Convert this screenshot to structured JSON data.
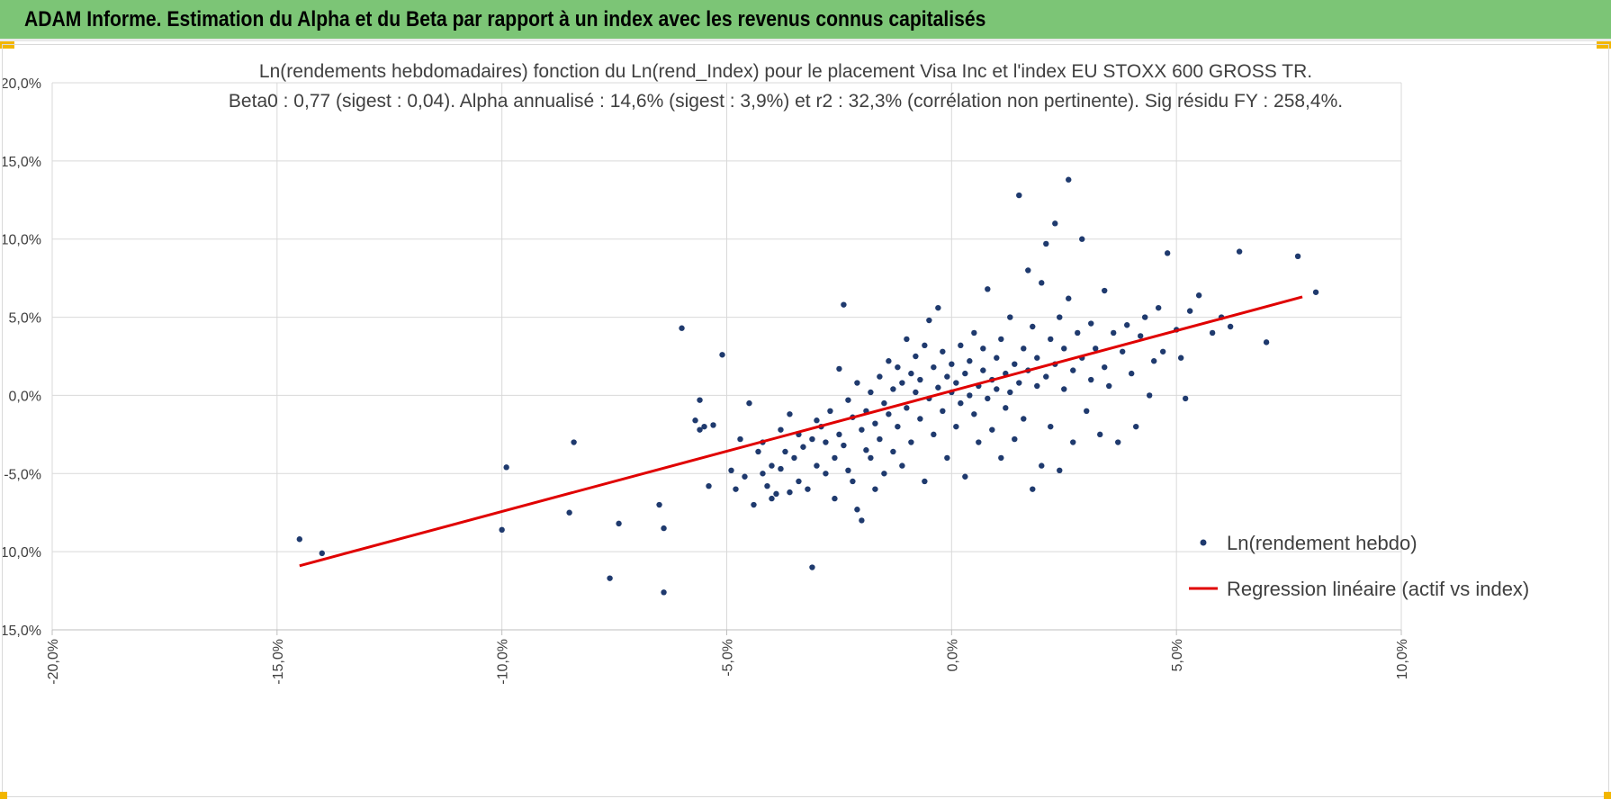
{
  "header": {
    "title": "ADAM Informe. Estimation du Alpha et du Beta par rapport à un index avec les revenus connus capitalisés"
  },
  "colors": {
    "header_bg": "#7cc576",
    "points": "#1f3a6e",
    "regression": "#e00000"
  },
  "chart_data": {
    "type": "scatter",
    "title": "Ln(rendements hebdomadaires) fonction du Ln(rend_Index) pour le placement Visa Inc et l'index EU STOXX 600 GROSS TR.",
    "subtitle": "Beta0 : 0,77 (sigest : 0,04). Alpha annualisé : 14,6% (sigest : 3,9%) et r2 : 32,3% (corrélation non pertinente). Sig résidu FY : 258,4%.",
    "xlabel": "",
    "ylabel": "",
    "xlim": [
      -0.2,
      0.1
    ],
    "ylim": [
      -0.15,
      0.2
    ],
    "x_ticks": [
      "-20,0%",
      "-15,0%",
      "-10,0%",
      "-5,0%",
      "0,0%",
      "5,0%",
      "10,0%"
    ],
    "y_ticks": [
      "20,0%",
      "15,0%",
      "10,0%",
      "5,0%",
      "0,0%",
      "-5,0%",
      "-10,0%",
      "-15,0%"
    ],
    "grid": true,
    "legend_position": "bottom-right",
    "series": [
      {
        "name": "Ln(rendement hebdo)",
        "kind": "scatter",
        "points": [
          [
            -0.145,
            -0.092
          ],
          [
            -0.14,
            -0.101
          ],
          [
            -0.1,
            -0.086
          ],
          [
            -0.099,
            -0.046
          ],
          [
            -0.084,
            -0.03
          ],
          [
            -0.085,
            -0.075
          ],
          [
            -0.076,
            -0.117
          ],
          [
            -0.074,
            -0.082
          ],
          [
            -0.065,
            -0.07
          ],
          [
            -0.064,
            -0.085
          ],
          [
            -0.064,
            -0.126
          ],
          [
            -0.06,
            0.043
          ],
          [
            -0.057,
            -0.016
          ],
          [
            -0.056,
            -0.022
          ],
          [
            -0.056,
            -0.003
          ],
          [
            -0.055,
            -0.02
          ],
          [
            -0.054,
            -0.058
          ],
          [
            -0.053,
            -0.019
          ],
          [
            -0.051,
            0.026
          ],
          [
            -0.049,
            -0.048
          ],
          [
            -0.048,
            -0.06
          ],
          [
            -0.047,
            -0.028
          ],
          [
            -0.046,
            -0.052
          ],
          [
            -0.045,
            -0.005
          ],
          [
            -0.044,
            -0.07
          ],
          [
            -0.043,
            -0.036
          ],
          [
            -0.042,
            -0.05
          ],
          [
            -0.042,
            -0.03
          ],
          [
            -0.041,
            -0.058
          ],
          [
            -0.04,
            -0.066
          ],
          [
            -0.04,
            -0.045
          ],
          [
            -0.039,
            -0.063
          ],
          [
            -0.038,
            -0.022
          ],
          [
            -0.038,
            -0.047
          ],
          [
            -0.037,
            -0.036
          ],
          [
            -0.036,
            -0.012
          ],
          [
            -0.036,
            -0.062
          ],
          [
            -0.035,
            -0.04
          ],
          [
            -0.034,
            -0.055
          ],
          [
            -0.034,
            -0.025
          ],
          [
            -0.033,
            -0.033
          ],
          [
            -0.032,
            -0.06
          ],
          [
            -0.031,
            -0.028
          ],
          [
            -0.031,
            -0.11
          ],
          [
            -0.03,
            -0.016
          ],
          [
            -0.03,
            -0.045
          ],
          [
            -0.029,
            -0.02
          ],
          [
            -0.028,
            -0.03
          ],
          [
            -0.028,
            -0.05
          ],
          [
            -0.027,
            -0.01
          ],
          [
            -0.026,
            -0.066
          ],
          [
            -0.026,
            -0.04
          ],
          [
            -0.025,
            0.017
          ],
          [
            -0.025,
            -0.025
          ],
          [
            -0.024,
            0.058
          ],
          [
            -0.024,
            -0.032
          ],
          [
            -0.023,
            -0.048
          ],
          [
            -0.023,
            -0.003
          ],
          [
            -0.022,
            -0.014
          ],
          [
            -0.022,
            -0.055
          ],
          [
            -0.021,
            0.008
          ],
          [
            -0.021,
            -0.073
          ],
          [
            -0.02,
            -0.022
          ],
          [
            -0.02,
            -0.08
          ],
          [
            -0.019,
            -0.035
          ],
          [
            -0.019,
            -0.01
          ],
          [
            -0.018,
            0.002
          ],
          [
            -0.018,
            -0.04
          ],
          [
            -0.017,
            -0.06
          ],
          [
            -0.017,
            -0.018
          ],
          [
            -0.016,
            0.012
          ],
          [
            -0.016,
            -0.028
          ],
          [
            -0.015,
            -0.005
          ],
          [
            -0.015,
            -0.05
          ],
          [
            -0.014,
            0.022
          ],
          [
            -0.014,
            -0.012
          ],
          [
            -0.013,
            0.004
          ],
          [
            -0.013,
            -0.036
          ],
          [
            -0.012,
            0.018
          ],
          [
            -0.012,
            -0.02
          ],
          [
            -0.011,
            -0.045
          ],
          [
            -0.011,
            0.008
          ],
          [
            -0.01,
            0.036
          ],
          [
            -0.01,
            -0.008
          ],
          [
            -0.009,
            0.014
          ],
          [
            -0.009,
            -0.03
          ],
          [
            -0.008,
            0.002
          ],
          [
            -0.008,
            0.025
          ],
          [
            -0.007,
            -0.015
          ],
          [
            -0.007,
            0.01
          ],
          [
            -0.006,
            -0.055
          ],
          [
            -0.006,
            0.032
          ],
          [
            -0.005,
            0.048
          ],
          [
            -0.005,
            -0.002
          ],
          [
            -0.004,
            0.018
          ],
          [
            -0.004,
            -0.025
          ],
          [
            -0.003,
            0.005
          ],
          [
            -0.003,
            0.056
          ],
          [
            -0.002,
            -0.01
          ],
          [
            -0.002,
            0.028
          ],
          [
            -0.001,
            0.012
          ],
          [
            -0.001,
            -0.04
          ],
          [
            0.0,
            0.002
          ],
          [
            0.0,
            0.02
          ],
          [
            0.001,
            -0.02
          ],
          [
            0.001,
            0.008
          ],
          [
            0.002,
            0.032
          ],
          [
            0.002,
            -0.005
          ],
          [
            0.003,
            0.014
          ],
          [
            0.003,
            -0.052
          ],
          [
            0.004,
            0.0
          ],
          [
            0.004,
            0.022
          ],
          [
            0.005,
            -0.012
          ],
          [
            0.005,
            0.04
          ],
          [
            0.006,
            0.006
          ],
          [
            0.006,
            -0.03
          ],
          [
            0.007,
            0.016
          ],
          [
            0.007,
            0.03
          ],
          [
            0.008,
            -0.002
          ],
          [
            0.008,
            0.068
          ],
          [
            0.009,
            0.01
          ],
          [
            0.009,
            -0.022
          ],
          [
            0.01,
            0.024
          ],
          [
            0.01,
            0.004
          ],
          [
            0.011,
            -0.04
          ],
          [
            0.011,
            0.036
          ],
          [
            0.012,
            0.014
          ],
          [
            0.012,
            -0.008
          ],
          [
            0.013,
            0.05
          ],
          [
            0.013,
            0.002
          ],
          [
            0.014,
            0.02
          ],
          [
            0.014,
            -0.028
          ],
          [
            0.015,
            0.128
          ],
          [
            0.015,
            0.008
          ],
          [
            0.016,
            0.03
          ],
          [
            0.016,
            -0.015
          ],
          [
            0.017,
            0.08
          ],
          [
            0.017,
            0.016
          ],
          [
            0.018,
            -0.06
          ],
          [
            0.018,
            0.044
          ],
          [
            0.019,
            0.006
          ],
          [
            0.019,
            0.024
          ],
          [
            0.02,
            -0.045
          ],
          [
            0.02,
            0.072
          ],
          [
            0.021,
            0.012
          ],
          [
            0.021,
            0.097
          ],
          [
            0.022,
            0.036
          ],
          [
            0.022,
            -0.02
          ],
          [
            0.023,
            0.11
          ],
          [
            0.023,
            0.02
          ],
          [
            0.024,
            -0.048
          ],
          [
            0.024,
            0.05
          ],
          [
            0.025,
            0.03
          ],
          [
            0.025,
            0.004
          ],
          [
            0.026,
            0.138
          ],
          [
            0.026,
            0.062
          ],
          [
            0.027,
            0.016
          ],
          [
            0.027,
            -0.03
          ],
          [
            0.028,
            0.04
          ],
          [
            0.029,
            0.1
          ],
          [
            0.029,
            0.024
          ],
          [
            0.03,
            -0.01
          ],
          [
            0.031,
            0.046
          ],
          [
            0.031,
            0.01
          ],
          [
            0.032,
            0.03
          ],
          [
            0.033,
            -0.025
          ],
          [
            0.034,
            0.067
          ],
          [
            0.034,
            0.018
          ],
          [
            0.035,
            0.006
          ],
          [
            0.036,
            0.04
          ],
          [
            0.037,
            -0.03
          ],
          [
            0.038,
            0.028
          ],
          [
            0.039,
            0.045
          ],
          [
            0.04,
            0.014
          ],
          [
            0.041,
            -0.02
          ],
          [
            0.042,
            0.038
          ],
          [
            0.043,
            0.05
          ],
          [
            0.044,
            0.0
          ],
          [
            0.045,
            0.022
          ],
          [
            0.046,
            0.056
          ],
          [
            0.047,
            0.028
          ],
          [
            0.048,
            0.091
          ],
          [
            0.05,
            0.042
          ],
          [
            0.051,
            0.024
          ],
          [
            0.052,
            -0.002
          ],
          [
            0.053,
            0.054
          ],
          [
            0.055,
            0.064
          ],
          [
            0.058,
            0.04
          ],
          [
            0.06,
            0.05
          ],
          [
            0.062,
            0.044
          ],
          [
            0.064,
            0.092
          ],
          [
            0.07,
            0.034
          ],
          [
            0.077,
            0.089
          ],
          [
            0.081,
            0.066
          ]
        ]
      },
      {
        "name": "Regression linéaire (actif vs index)",
        "kind": "line",
        "points": [
          [
            -0.145,
            -0.109
          ],
          [
            0.078,
            0.063
          ]
        ]
      }
    ]
  }
}
